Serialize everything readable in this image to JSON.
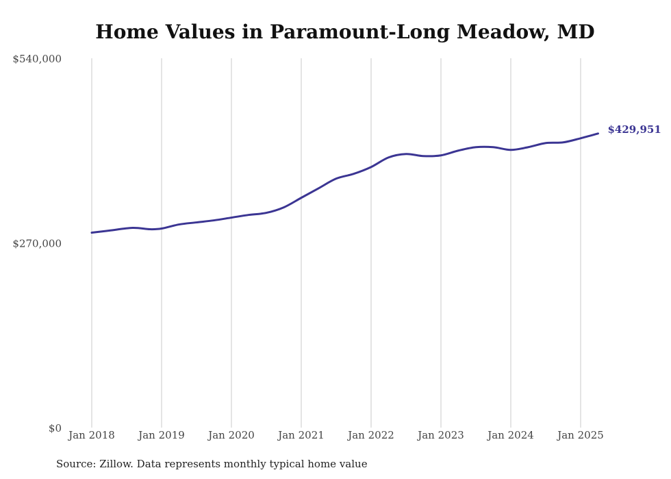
{
  "title": "Home Values in Paramount-Long Meadow, MD",
  "source": "Source: Zillow. Data represents monthly typical home value",
  "colors": {
    "line": "#3b3593",
    "grid": "#c8c8c8",
    "text": "#444444"
  },
  "chart_data": {
    "type": "line",
    "title": "Home Values in Paramount-Long Meadow, MD",
    "xlabel": "",
    "ylabel": "",
    "ylim": [
      0,
      540000
    ],
    "yticks": [
      0,
      270000,
      540000
    ],
    "ytick_labels": [
      "$0",
      "$270,000",
      "$540,000"
    ],
    "xlim": [
      "2018-01",
      "2025-04"
    ],
    "xticks": [
      "2018-01",
      "2019-01",
      "2020-01",
      "2021-01",
      "2022-01",
      "2023-01",
      "2024-01",
      "2025-01"
    ],
    "xtick_labels": [
      "Jan 2018",
      "Jan 2019",
      "Jan 2020",
      "Jan 2021",
      "Jan 2022",
      "Jan 2023",
      "Jan 2024",
      "Jan 2025"
    ],
    "grid": "vertical",
    "end_label": "$429,951",
    "series": [
      {
        "x": [
          "2018-01",
          "2018-04",
          "2018-08",
          "2018-11",
          "2019-01",
          "2019-04",
          "2019-07",
          "2019-10",
          "2020-01",
          "2020-04",
          "2020-07",
          "2020-10",
          "2021-01",
          "2021-04",
          "2021-07",
          "2021-10",
          "2022-01",
          "2022-04",
          "2022-07",
          "2022-10",
          "2023-01",
          "2023-04",
          "2023-07",
          "2023-10",
          "2024-01",
          "2024-04",
          "2024-07",
          "2024-10",
          "2025-01",
          "2025-04"
        ],
        "values": [
          285000,
          288000,
          292000,
          290000,
          291000,
          297000,
          300000,
          303000,
          307000,
          311000,
          314000,
          322000,
          336000,
          350000,
          364000,
          371000,
          381000,
          395000,
          400000,
          397000,
          398000,
          405000,
          410000,
          410000,
          406000,
          410000,
          416000,
          417000,
          423000,
          429951
        ]
      }
    ]
  }
}
